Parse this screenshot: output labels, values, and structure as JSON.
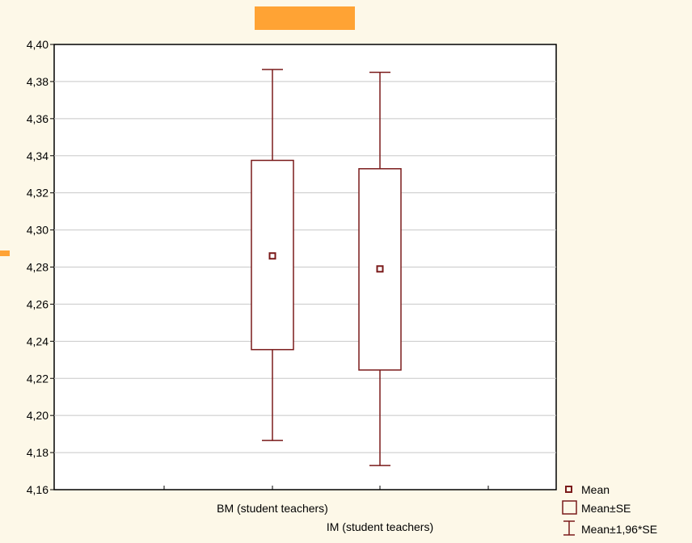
{
  "chart_data": {
    "type": "box",
    "title": "",
    "xlabel": "",
    "ylabel": "",
    "ylim": [
      4.16,
      4.4
    ],
    "y_ticks": [
      "4,16",
      "4,18",
      "4,20",
      "4,22",
      "4,24",
      "4,26",
      "4,28",
      "4,30",
      "4,32",
      "4,34",
      "4,36",
      "4,38",
      "4,40"
    ],
    "y_tick_values": [
      4.16,
      4.18,
      4.2,
      4.22,
      4.24,
      4.26,
      4.28,
      4.3,
      4.32,
      4.34,
      4.36,
      4.38,
      4.4
    ],
    "grid": true,
    "legend_position": "bottom-right",
    "categories": [
      "BM (student teachers)",
      "IM (student teachers)"
    ],
    "groups": [
      {
        "category": "BM (student teachers)",
        "mean": 4.286,
        "se_low": 4.2355,
        "se_high": 4.3375,
        "ci_low": 4.1865,
        "ci_high": 4.3865
      },
      {
        "category": "IM (student teachers)",
        "mean": 4.279,
        "se_low": 4.2245,
        "se_high": 4.333,
        "ci_low": 4.173,
        "ci_high": 4.385
      }
    ],
    "legend": [
      {
        "label": "Mean",
        "symbol": "point"
      },
      {
        "label": "Mean±SE",
        "symbol": "box"
      },
      {
        "label": "Mean±1,96*SE",
        "symbol": "whisker"
      }
    ],
    "colors": {
      "series": "#7a1a1a",
      "background": "#fdf8e8",
      "plot_background": "#ffffff",
      "decoration": "#ffa334"
    }
  }
}
